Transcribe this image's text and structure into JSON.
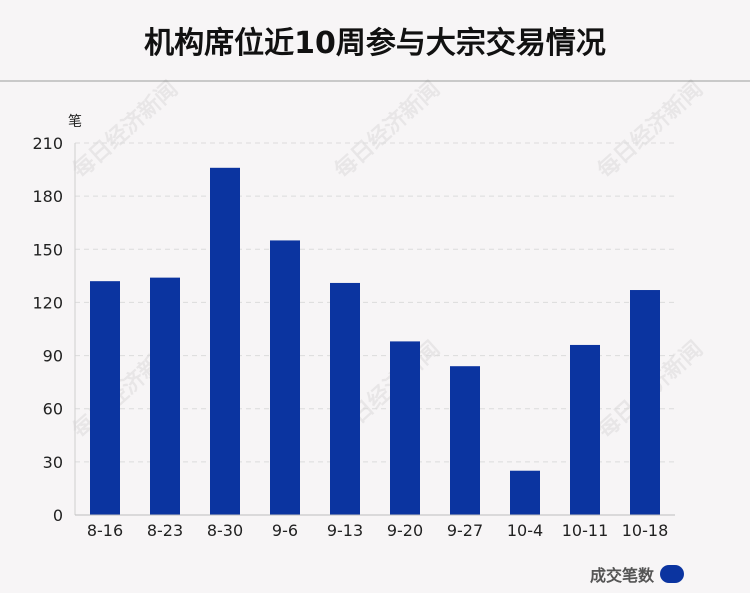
{
  "title": "机构席位近10周参与大宗交易情况",
  "watermark": "每日经济新闻",
  "colors": {
    "bar": "#0b34a0",
    "background": "#f7f5f6"
  },
  "chart_data": {
    "type": "bar",
    "title": "机构席位近10周参与大宗交易情况",
    "ylabel": "笔",
    "xlabel": "",
    "categories": [
      "8-16",
      "8-23",
      "8-30",
      "9-6",
      "9-13",
      "9-20",
      "9-27",
      "10-4",
      "10-11",
      "10-18"
    ],
    "series": [
      {
        "name": "成交笔数",
        "values": [
          132,
          134,
          196,
          155,
          131,
          98,
          84,
          25,
          96,
          127
        ]
      }
    ],
    "ylim": [
      0,
      210
    ],
    "yticks": [
      0,
      30,
      60,
      90,
      120,
      150,
      180,
      210
    ],
    "grid": true,
    "legend_position": "bottom-right"
  }
}
